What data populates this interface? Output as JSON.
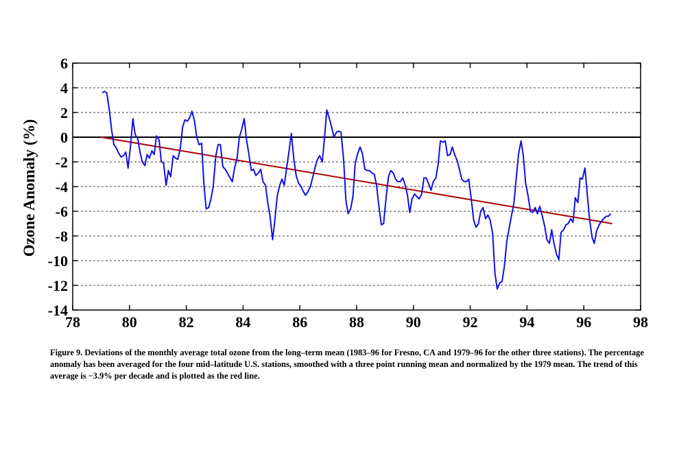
{
  "caption": "Figure 9. Deviations of the monthly average total ozone from the long–term mean (1983–96 for Fresno, CA and 1979–96 for the other three stations).  The percentage anomaly has been averaged for the four mid–latitude U.S. stations, smoothed with a three point running mean and normalized by the 1979 mean. The trend of this average is −3.9% per decade and is plotted as the red line.",
  "chart_data": {
    "type": "line",
    "title": "",
    "xlabel": "",
    "ylabel": "Ozone Anomaly (%)",
    "xlim": [
      78,
      98
    ],
    "ylim": [
      -14,
      6
    ],
    "x_ticks": [
      78,
      80,
      82,
      84,
      86,
      88,
      90,
      92,
      94,
      96,
      98
    ],
    "y_ticks": [
      6,
      4,
      2,
      0,
      -2,
      -4,
      -6,
      -8,
      -10,
      -12,
      -14
    ],
    "grid": "dashed horizontal lines at each y tick; solid line at y=0",
    "colors": {
      "anomaly": "#1010e0",
      "trend": "#b00000",
      "zero_line": "#000000",
      "grid": "#000000"
    },
    "series": [
      {
        "key": "anomaly",
        "x": [
          79.04,
          79.12,
          79.2,
          79.29,
          79.37,
          79.45,
          79.54,
          79.62,
          79.7,
          79.79,
          79.87,
          79.95,
          80.04,
          80.12,
          80.2,
          80.29,
          80.37,
          80.45,
          80.54,
          80.62,
          80.7,
          80.79,
          80.87,
          80.95,
          81.04,
          81.12,
          81.2,
          81.29,
          81.37,
          81.45,
          81.54,
          81.62,
          81.7,
          81.79,
          81.87,
          81.95,
          82.04,
          82.12,
          82.2,
          82.29,
          82.37,
          82.45,
          82.54,
          82.62,
          82.7,
          82.79,
          82.87,
          82.95,
          83.04,
          83.12,
          83.2,
          83.29,
          83.37,
          83.45,
          83.54,
          83.62,
          83.7,
          83.79,
          83.87,
          83.95,
          84.04,
          84.12,
          84.2,
          84.29,
          84.37,
          84.45,
          84.54,
          84.62,
          84.7,
          84.79,
          84.87,
          84.95,
          85.04,
          85.12,
          85.2,
          85.29,
          85.37,
          85.45,
          85.54,
          85.62,
          85.7,
          85.79,
          85.87,
          85.95,
          86.04,
          86.12,
          86.2,
          86.29,
          86.37,
          86.45,
          86.54,
          86.62,
          86.7,
          86.79,
          86.87,
          86.95,
          87.04,
          87.12,
          87.2,
          87.29,
          87.37,
          87.45,
          87.54,
          87.62,
          87.7,
          87.79,
          87.87,
          87.95,
          88.04,
          88.12,
          88.2,
          88.29,
          88.37,
          88.45,
          88.54,
          88.62,
          88.7,
          88.79,
          88.87,
          88.95,
          89.04,
          89.12,
          89.2,
          89.29,
          89.37,
          89.45,
          89.54,
          89.62,
          89.7,
          89.79,
          89.87,
          89.95,
          90.04,
          90.12,
          90.2,
          90.29,
          90.37,
          90.45,
          90.54,
          90.62,
          90.7,
          90.79,
          90.87,
          90.95,
          91.04,
          91.12,
          91.2,
          91.29,
          91.37,
          91.45,
          91.54,
          91.62,
          91.7,
          91.79,
          91.87,
          91.95,
          92.04,
          92.12,
          92.2,
          92.29,
          92.37,
          92.45,
          92.54,
          92.62,
          92.7,
          92.79,
          92.87,
          92.95,
          93.04,
          93.12,
          93.2,
          93.29,
          93.37,
          93.45,
          93.54,
          93.62,
          93.7,
          93.79,
          93.87,
          93.95,
          94.04,
          94.12,
          94.2,
          94.29,
          94.37,
          94.45,
          94.54,
          94.62,
          94.7,
          94.79,
          94.87,
          94.95,
          95.04,
          95.12,
          95.2,
          95.29,
          95.37,
          95.45,
          95.54,
          95.62,
          95.7,
          95.79,
          95.87,
          95.95,
          96.04,
          96.12,
          96.2,
          96.29,
          96.37,
          96.45,
          96.54,
          96.62,
          96.7,
          96.79,
          96.87,
          96.95
        ],
        "y": [
          3.6,
          3.7,
          3.6,
          2.2,
          0.6,
          -0.6,
          -0.9,
          -1.3,
          -1.6,
          -1.5,
          -1.2,
          -2.5,
          -0.6,
          1.5,
          0.2,
          -0.1,
          -1.2,
          -2.0,
          -2.3,
          -1.4,
          -1.7,
          -1.1,
          -1.4,
          0.1,
          -0.2,
          -2.0,
          -2.1,
          -3.9,
          -2.7,
          -3.2,
          -1.5,
          -1.7,
          -1.8,
          -0.9,
          0.8,
          1.4,
          1.3,
          1.6,
          2.1,
          1.3,
          0.0,
          -0.6,
          -0.5,
          -3.8,
          -5.8,
          -5.7,
          -5.0,
          -4.0,
          -1.5,
          -0.6,
          -0.6,
          -2.4,
          -2.6,
          -2.9,
          -3.3,
          -3.6,
          -2.5,
          -1.7,
          0.0,
          0.6,
          1.5,
          -0.2,
          -1.3,
          -2.7,
          -2.6,
          -3.1,
          -2.9,
          -2.6,
          -3.6,
          -3.9,
          -5.3,
          -6.4,
          -8.3,
          -6.7,
          -4.8,
          -3.9,
          -3.4,
          -3.9,
          -2.4,
          -1.1,
          0.3,
          -1.8,
          -3.1,
          -3.7,
          -4.0,
          -4.4,
          -4.7,
          -4.4,
          -4.0,
          -3.3,
          -2.4,
          -1.8,
          -1.5,
          -2.0,
          0.0,
          2.2,
          1.5,
          0.8,
          0.0,
          0.4,
          0.5,
          0.4,
          -1.8,
          -5.1,
          -6.2,
          -5.8,
          -4.8,
          -2.1,
          -1.3,
          -0.8,
          -1.3,
          -2.6,
          -2.7,
          -2.7,
          -2.9,
          -3.0,
          -3.9,
          -5.7,
          -7.1,
          -7.0,
          -4.8,
          -3.2,
          -2.7,
          -2.9,
          -3.4,
          -3.6,
          -3.6,
          -3.3,
          -3.8,
          -4.7,
          -6.1,
          -5.0,
          -4.6,
          -4.8,
          -5.0,
          -4.6,
          -3.3,
          -3.3,
          -3.8,
          -4.3,
          -3.6,
          -3.3,
          -2.2,
          -0.3,
          -0.4,
          -0.3,
          -1.5,
          -1.4,
          -0.8,
          -1.4,
          -1.9,
          -2.6,
          -3.4,
          -3.6,
          -3.6,
          -3.4,
          -5.1,
          -6.7,
          -7.3,
          -7.0,
          -6.0,
          -5.7,
          -6.6,
          -6.3,
          -6.7,
          -7.8,
          -11.0,
          -12.3,
          -11.8,
          -11.7,
          -10.5,
          -8.4,
          -7.4,
          -6.4,
          -5.3,
          -3.3,
          -1.4,
          -0.3,
          -1.5,
          -3.7,
          -4.8,
          -6.0,
          -6.1,
          -5.7,
          -6.2,
          -5.6,
          -6.4,
          -7.2,
          -8.3,
          -8.6,
          -7.5,
          -8.6,
          -9.5,
          -9.9,
          -7.7,
          -7.5,
          -7.1,
          -7.0,
          -6.6,
          -6.9,
          -4.9,
          -5.3,
          -3.3,
          -3.4,
          -2.5,
          -4.6,
          -6.6,
          -8.1,
          -8.6,
          -7.6,
          -7.1,
          -6.8,
          -6.6,
          -6.4,
          -6.4,
          -6.2
        ]
      },
      {
        "key": "trend",
        "x": [
          79.0,
          97.0
        ],
        "y": [
          0.0,
          -7.0
        ]
      }
    ]
  }
}
